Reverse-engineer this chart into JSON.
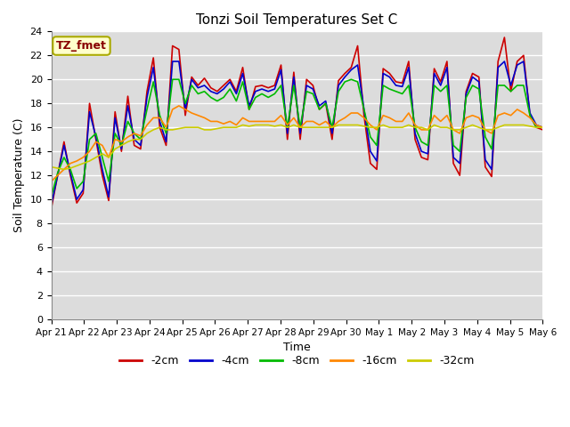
{
  "title": "Tonzi Soil Temperatures Set C",
  "xlabel": "Time",
  "ylabel": "Soil Temperature (C)",
  "ylim": [
    0,
    24
  ],
  "yticks": [
    0,
    2,
    4,
    6,
    8,
    10,
    12,
    14,
    16,
    18,
    20,
    22,
    24
  ],
  "bg_color": "#dcdcdc",
  "legend_label": "TZ_fmet",
  "series_colors": [
    "#cc0000",
    "#0000cc",
    "#00bb00",
    "#ff8800",
    "#cccc00"
  ],
  "series_labels": [
    "-2cm",
    "-4cm",
    "-8cm",
    "-16cm",
    "-32cm"
  ],
  "xtick_labels": [
    "Apr 21",
    "Apr 22",
    "Apr 23",
    "Apr 24",
    "Apr 25",
    "Apr 26",
    "Apr 27",
    "Apr 28",
    "Apr 29",
    "Apr 30",
    "May 1",
    "May 2",
    "May 3",
    "May 4",
    "May 5",
    "May 6"
  ],
  "data_2cm": [
    9.2,
    12.0,
    14.8,
    12.0,
    9.7,
    10.5,
    18.0,
    15.0,
    12.0,
    9.9,
    17.3,
    14.0,
    18.6,
    14.5,
    14.2,
    19.0,
    21.8,
    16.0,
    14.5,
    22.8,
    22.5,
    17.0,
    20.2,
    19.5,
    20.1,
    19.3,
    19.0,
    19.5,
    20.0,
    19.0,
    21.0,
    17.5,
    19.4,
    19.5,
    19.3,
    19.5,
    21.2,
    15.0,
    20.6,
    15.0,
    20.0,
    19.5,
    17.5,
    18.0,
    15.0,
    19.9,
    20.5,
    21.0,
    22.8,
    17.0,
    13.0,
    12.5,
    20.9,
    20.5,
    19.8,
    19.7,
    21.5,
    15.0,
    13.5,
    13.3,
    20.9,
    19.8,
    21.5,
    13.0,
    12.0,
    19.0,
    20.5,
    20.2,
    12.7,
    11.9,
    21.5,
    23.5,
    19.0,
    21.5,
    22.0,
    17.0,
    16.0,
    15.8
  ],
  "data_4cm": [
    9.5,
    12.0,
    14.5,
    12.2,
    10.0,
    10.8,
    17.3,
    15.2,
    12.5,
    10.2,
    16.8,
    14.2,
    17.8,
    15.0,
    14.5,
    18.5,
    21.0,
    16.5,
    14.8,
    21.5,
    21.5,
    17.5,
    20.0,
    19.3,
    19.5,
    19.0,
    18.8,
    19.2,
    19.8,
    18.8,
    20.5,
    17.8,
    19.0,
    19.2,
    19.0,
    19.2,
    20.8,
    15.5,
    20.2,
    15.5,
    19.5,
    19.2,
    17.8,
    18.2,
    15.5,
    19.5,
    20.2,
    20.8,
    21.2,
    17.5,
    14.0,
    13.2,
    20.5,
    20.2,
    19.5,
    19.4,
    21.0,
    15.5,
    14.0,
    13.8,
    20.5,
    19.5,
    21.0,
    13.5,
    13.0,
    18.8,
    20.2,
    19.8,
    13.3,
    12.5,
    21.0,
    21.5,
    19.5,
    21.2,
    21.5,
    17.2,
    16.2,
    16.0
  ],
  "data_8cm": [
    10.2,
    12.2,
    13.5,
    12.5,
    10.9,
    11.5,
    15.0,
    15.5,
    13.5,
    11.5,
    15.5,
    14.5,
    16.5,
    15.5,
    15.0,
    17.5,
    19.8,
    17.0,
    15.5,
    20.0,
    20.0,
    18.0,
    19.5,
    18.8,
    19.0,
    18.5,
    18.2,
    18.5,
    19.2,
    18.2,
    19.8,
    17.5,
    18.5,
    18.8,
    18.5,
    18.8,
    19.5,
    16.0,
    19.5,
    16.0,
    19.0,
    18.8,
    17.5,
    18.0,
    16.0,
    19.0,
    19.8,
    20.0,
    19.8,
    17.5,
    15.2,
    14.5,
    19.5,
    19.2,
    19.0,
    18.8,
    19.5,
    16.0,
    14.8,
    14.5,
    19.5,
    19.0,
    19.5,
    14.5,
    14.0,
    18.5,
    19.5,
    19.2,
    15.2,
    14.2,
    19.5,
    19.5,
    19.0,
    19.5,
    19.5,
    17.0,
    16.0,
    16.0
  ],
  "data_16cm": [
    11.5,
    12.0,
    12.5,
    13.0,
    13.2,
    13.5,
    14.0,
    14.8,
    14.5,
    13.5,
    15.0,
    14.8,
    15.2,
    15.5,
    15.3,
    16.2,
    16.8,
    16.8,
    16.0,
    17.5,
    17.8,
    17.5,
    17.2,
    17.0,
    16.8,
    16.5,
    16.5,
    16.3,
    16.5,
    16.2,
    16.8,
    16.5,
    16.5,
    16.5,
    16.5,
    16.5,
    17.0,
    16.2,
    16.8,
    16.0,
    16.5,
    16.5,
    16.2,
    16.5,
    16.0,
    16.5,
    16.8,
    17.2,
    17.2,
    16.8,
    16.2,
    15.8,
    17.0,
    16.8,
    16.5,
    16.5,
    17.2,
    16.2,
    15.8,
    15.8,
    17.0,
    16.5,
    17.0,
    15.8,
    15.5,
    16.8,
    17.0,
    16.8,
    15.8,
    15.5,
    17.0,
    17.2,
    17.0,
    17.5,
    17.2,
    16.8,
    16.2,
    16.0
  ],
  "data_32cm": [
    12.7,
    12.6,
    12.5,
    12.6,
    12.8,
    13.0,
    13.2,
    13.5,
    13.8,
    13.5,
    14.2,
    14.5,
    14.8,
    15.0,
    15.0,
    15.5,
    15.8,
    16.0,
    15.8,
    15.8,
    15.9,
    16.0,
    16.0,
    16.0,
    15.8,
    15.8,
    15.9,
    16.0,
    16.0,
    16.0,
    16.2,
    16.1,
    16.2,
    16.2,
    16.2,
    16.1,
    16.2,
    16.0,
    16.2,
    16.0,
    16.0,
    16.0,
    16.0,
    16.0,
    16.0,
    16.2,
    16.2,
    16.2,
    16.2,
    16.1,
    16.0,
    16.0,
    16.2,
    16.0,
    16.0,
    16.0,
    16.2,
    16.0,
    16.0,
    15.8,
    16.2,
    16.0,
    16.0,
    15.8,
    15.8,
    16.0,
    16.2,
    16.0,
    15.8,
    15.8,
    16.0,
    16.2,
    16.2,
    16.2,
    16.2,
    16.1,
    16.0,
    16.0
  ]
}
